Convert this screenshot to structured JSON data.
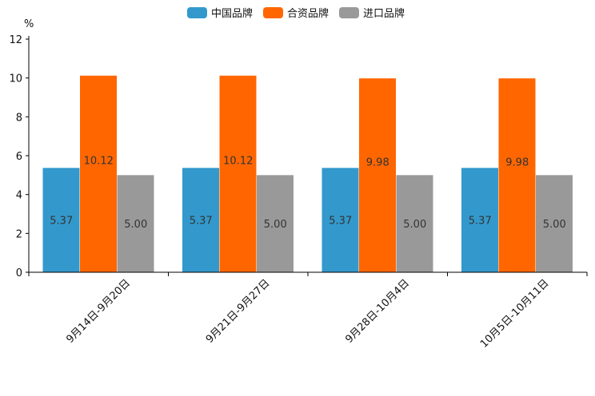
{
  "chart_data": {
    "type": "bar",
    "ylabel": "%",
    "ylim": [
      0,
      12
    ],
    "yticks": [
      0,
      2,
      4,
      6,
      8,
      10,
      12
    ],
    "categories": [
      "9月14日-9月20日",
      "9月21日-9月27日",
      "9月28日-10月4日",
      "10月5日-10月11日"
    ],
    "series": [
      {
        "name": "中国品牌",
        "color": "#3399cc",
        "values": [
          5.37,
          5.37,
          5.37,
          5.37
        ],
        "labels": [
          "5.37",
          "5.37",
          "5.37",
          "5.37"
        ]
      },
      {
        "name": "合资品牌",
        "color": "#ff6600",
        "values": [
          10.12,
          10.12,
          9.98,
          9.98
        ],
        "labels": [
          "10.12",
          "10.12",
          "9.98",
          "9.98"
        ]
      },
      {
        "name": "进口品牌",
        "color": "#999999",
        "values": [
          5.0,
          5.0,
          5.0,
          5.0
        ],
        "labels": [
          "5.00",
          "5.00",
          "5.00",
          "5.00"
        ]
      }
    ],
    "legend_position": "top-center",
    "grid": false
  }
}
